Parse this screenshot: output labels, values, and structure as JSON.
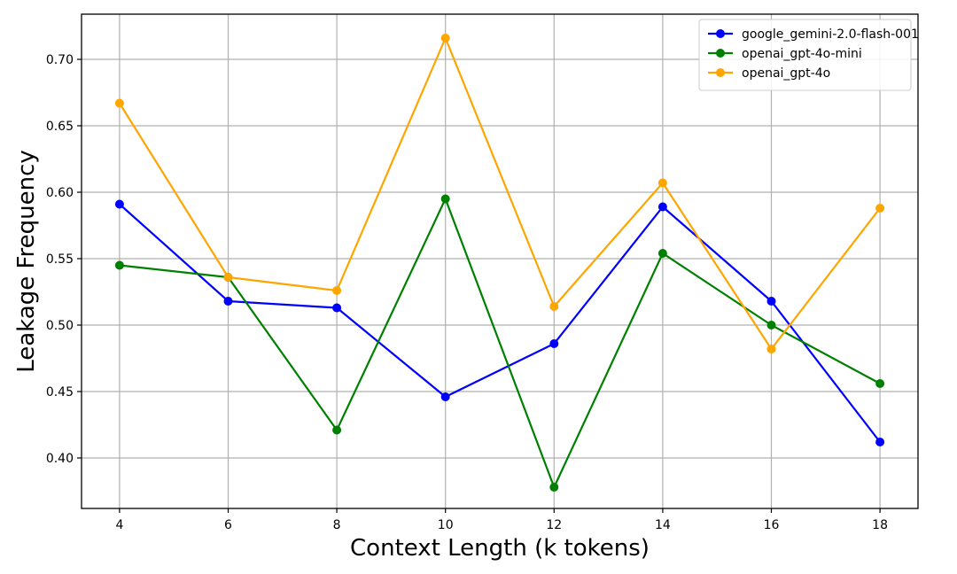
{
  "chart_data": {
    "type": "line",
    "title": "",
    "xlabel": "Context Length (k tokens)",
    "ylabel": "Leakage Frequency",
    "x": [
      4,
      6,
      8,
      10,
      12,
      14,
      16,
      18
    ],
    "x_ticks": [
      "4",
      "6",
      "8",
      "10",
      "12",
      "14",
      "16",
      "18"
    ],
    "xlim": [
      3.3,
      18.7
    ],
    "y_ticks": [
      "0.40",
      "0.45",
      "0.50",
      "0.55",
      "0.60",
      "0.65",
      "0.70"
    ],
    "ylim": [
      0.362,
      0.734
    ],
    "grid": true,
    "legend_position": "top-right",
    "series": [
      {
        "name": "google_gemini-2.0-flash-001",
        "color": "#0000ff",
        "values": [
          0.591,
          0.518,
          0.513,
          0.446,
          0.486,
          0.589,
          0.518,
          0.412
        ]
      },
      {
        "name": "openai_gpt-4o-mini",
        "color": "#008000",
        "values": [
          0.545,
          0.536,
          0.421,
          0.595,
          0.378,
          0.554,
          0.5,
          0.456
        ]
      },
      {
        "name": "openai_gpt-4o",
        "color": "#ffa500",
        "values": [
          0.667,
          0.536,
          0.526,
          0.716,
          0.514,
          0.607,
          0.482,
          0.588
        ]
      }
    ]
  }
}
